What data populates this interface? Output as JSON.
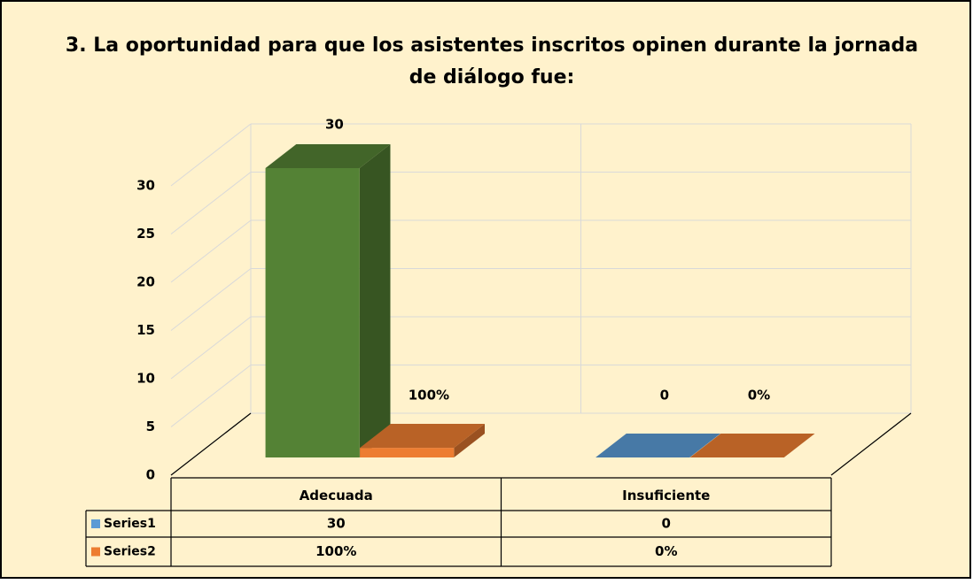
{
  "chart_data": {
    "type": "bar3d",
    "title": "3. La oportunidad para que los asistentes inscritos opinen durante la jornada de diálogo fue:",
    "categories": [
      "Adecuada",
      "Insuficiente"
    ],
    "series": [
      {
        "name": "Series1",
        "color": "#5b9bd5",
        "point_colors": [
          "#548235",
          "#5b9bd5"
        ],
        "values": [
          30,
          0
        ]
      },
      {
        "name": "Series2",
        "color": "#ed7d31",
        "values": [
          1,
          0
        ],
        "value_labels": [
          "100%",
          "0%"
        ]
      }
    ],
    "ylim": [
      0,
      30
    ],
    "yticks": [
      0,
      5,
      10,
      15,
      20,
      25,
      30
    ],
    "grid": true,
    "data_table": true
  }
}
